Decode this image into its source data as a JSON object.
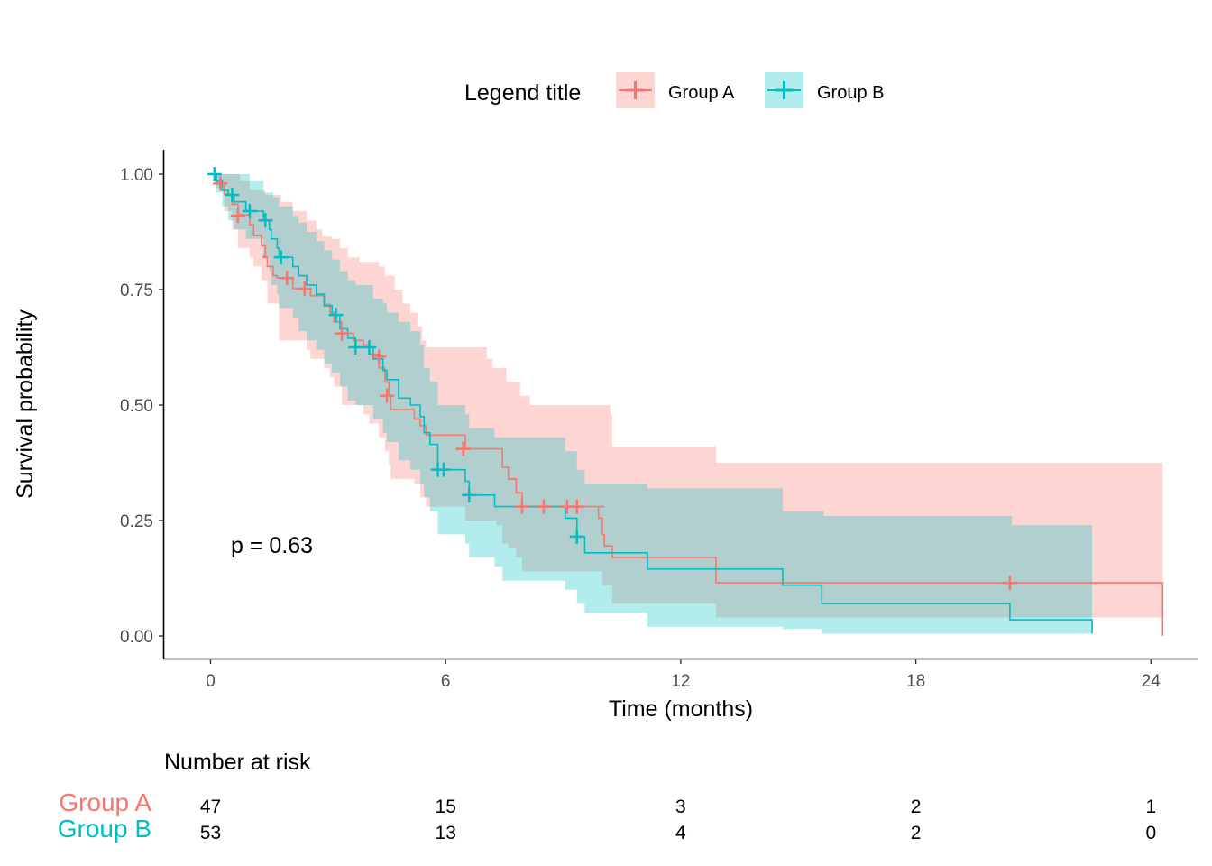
{
  "chart_data": {
    "type": "line",
    "subtype": "kaplan-meier survival curve with confidence bands and risk table",
    "xlabel": "Time (months)",
    "ylabel": "Survival probability",
    "xlim": [
      -1.1,
      25.3
    ],
    "ylim": [
      -0.05,
      1.05
    ],
    "x_ticks": [
      0,
      6,
      12,
      18,
      24
    ],
    "y_ticks": [
      0,
      0.25,
      0.5,
      0.75,
      1
    ],
    "y_tick_labels": [
      "0.00",
      "0.25",
      "0.50",
      "0.75",
      "1.00"
    ],
    "grid": false,
    "legend": {
      "title": "Legend title",
      "placement": "top"
    },
    "annotation": "p = 0.63",
    "series": [
      {
        "name": "Group A",
        "color": "#F8766D",
        "curve": [
          [
            0,
            1
          ],
          [
            0.15,
            0.98
          ],
          [
            0.35,
            0.957
          ],
          [
            0.55,
            0.935
          ],
          [
            0.7,
            0.912
          ],
          [
            1.0,
            0.89
          ],
          [
            1.1,
            0.867
          ],
          [
            1.3,
            0.845
          ],
          [
            1.4,
            0.822
          ],
          [
            1.35,
            0.82
          ],
          [
            1.45,
            0.8
          ],
          [
            1.6,
            0.78
          ],
          [
            1.7,
            0.775
          ],
          [
            2.0,
            0.775
          ],
          [
            2.1,
            0.752
          ],
          [
            2.3,
            0.752
          ],
          [
            2.45,
            0.752
          ],
          [
            2.55,
            0.737
          ],
          [
            2.9,
            0.718
          ],
          [
            3.05,
            0.7
          ],
          [
            3.15,
            0.68
          ],
          [
            3.35,
            0.655
          ],
          [
            3.65,
            0.64
          ],
          [
            3.9,
            0.63
          ],
          [
            4.05,
            0.61
          ],
          [
            4.3,
            0.58
          ],
          [
            4.45,
            0.55
          ],
          [
            4.55,
            0.52
          ],
          [
            4.6,
            0.49
          ],
          [
            5.2,
            0.47
          ],
          [
            5.35,
            0.455
          ],
          [
            5.5,
            0.435
          ],
          [
            6.4,
            0.435
          ],
          [
            6.5,
            0.405
          ],
          [
            7.3,
            0.405
          ],
          [
            7.45,
            0.365
          ],
          [
            7.6,
            0.34
          ],
          [
            7.8,
            0.31
          ],
          [
            7.95,
            0.28
          ],
          [
            10.05,
            0.28
          ],
          [
            9.9,
            0.255
          ],
          [
            10.0,
            0.22
          ],
          [
            10.05,
            0.195
          ],
          [
            10.25,
            0.17
          ],
          [
            12.85,
            0.17
          ],
          [
            12.9,
            0.115
          ],
          [
            24.25,
            0.115
          ],
          [
            24.3,
            0
          ]
        ],
        "band_upper": [
          [
            0,
            1
          ],
          [
            0.35,
            1
          ],
          [
            0.75,
            0.985
          ],
          [
            1.0,
            0.965
          ],
          [
            1.4,
            0.955
          ],
          [
            1.8,
            0.94
          ],
          [
            2.1,
            0.92
          ],
          [
            2.45,
            0.9
          ],
          [
            2.7,
            0.88
          ],
          [
            2.85,
            0.865
          ],
          [
            3.1,
            0.86
          ],
          [
            3.3,
            0.84
          ],
          [
            3.5,
            0.82
          ],
          [
            3.8,
            0.81
          ],
          [
            4.0,
            0.81
          ],
          [
            4.3,
            0.8
          ],
          [
            4.45,
            0.78
          ],
          [
            4.7,
            0.75
          ],
          [
            4.9,
            0.72
          ],
          [
            5.1,
            0.7
          ],
          [
            5.3,
            0.67
          ],
          [
            5.4,
            0.64
          ],
          [
            5.5,
            0.625
          ],
          [
            6.5,
            0.625
          ],
          [
            7.05,
            0.6
          ],
          [
            7.2,
            0.58
          ],
          [
            7.55,
            0.55
          ],
          [
            7.9,
            0.52
          ],
          [
            8.15,
            0.5
          ],
          [
            10.2,
            0.48
          ],
          [
            10.25,
            0.41
          ],
          [
            12.85,
            0.41
          ],
          [
            12.9,
            0.375
          ],
          [
            24.3,
            0.375
          ]
        ],
        "band_lower": [
          [
            0,
            1
          ],
          [
            0.15,
            0.97
          ],
          [
            0.35,
            0.92
          ],
          [
            0.55,
            0.88
          ],
          [
            0.7,
            0.84
          ],
          [
            1.0,
            0.82
          ],
          [
            1.1,
            0.8
          ],
          [
            1.3,
            0.77
          ],
          [
            1.45,
            0.72
          ],
          [
            1.6,
            0.72
          ],
          [
            1.75,
            0.64
          ],
          [
            2.1,
            0.64
          ],
          [
            2.3,
            0.64
          ],
          [
            2.45,
            0.62
          ],
          [
            2.55,
            0.6
          ],
          [
            2.9,
            0.58
          ],
          [
            3.05,
            0.56
          ],
          [
            3.15,
            0.54
          ],
          [
            3.35,
            0.5
          ],
          [
            3.65,
            0.5
          ],
          [
            3.9,
            0.48
          ],
          [
            4.05,
            0.46
          ],
          [
            4.3,
            0.43
          ],
          [
            4.45,
            0.4
          ],
          [
            4.55,
            0.37
          ],
          [
            4.6,
            0.34
          ],
          [
            5.2,
            0.33
          ],
          [
            5.35,
            0.3
          ],
          [
            5.5,
            0.28
          ],
          [
            6.4,
            0.28
          ],
          [
            6.5,
            0.25
          ],
          [
            7.3,
            0.24
          ],
          [
            7.45,
            0.2
          ],
          [
            7.6,
            0.19
          ],
          [
            7.8,
            0.17
          ],
          [
            7.95,
            0.14
          ],
          [
            9.9,
            0.14
          ],
          [
            10.0,
            0.11
          ],
          [
            10.25,
            0.07
          ],
          [
            12.85,
            0.07
          ],
          [
            12.9,
            0.04
          ],
          [
            24.3,
            0.04
          ]
        ],
        "censor": [
          [
            0.25,
            0.98
          ],
          [
            0.7,
            0.91
          ],
          [
            1.95,
            0.775
          ],
          [
            2.4,
            0.752
          ],
          [
            3.35,
            0.655
          ],
          [
            4.3,
            0.605
          ],
          [
            4.5,
            0.52
          ],
          [
            6.45,
            0.405
          ],
          [
            7.95,
            0.28
          ],
          [
            8.5,
            0.28
          ],
          [
            9.1,
            0.28
          ],
          [
            9.35,
            0.28
          ],
          [
            20.4,
            0.115
          ]
        ]
      },
      {
        "name": "Group B",
        "color": "#00BFC4",
        "curve": [
          [
            0,
            1
          ],
          [
            0.15,
            0.985
          ],
          [
            0.3,
            0.965
          ],
          [
            0.45,
            0.955
          ],
          [
            0.6,
            0.94
          ],
          [
            0.9,
            0.92
          ],
          [
            1.35,
            0.9
          ],
          [
            1.5,
            0.88
          ],
          [
            1.55,
            0.86
          ],
          [
            1.7,
            0.84
          ],
          [
            1.75,
            0.82
          ],
          [
            2.1,
            0.8
          ],
          [
            2.25,
            0.78
          ],
          [
            2.45,
            0.76
          ],
          [
            2.7,
            0.74
          ],
          [
            2.9,
            0.715
          ],
          [
            3.1,
            0.695
          ],
          [
            3.3,
            0.665
          ],
          [
            3.5,
            0.645
          ],
          [
            3.7,
            0.625
          ],
          [
            4.1,
            0.625
          ],
          [
            4.15,
            0.6
          ],
          [
            4.4,
            0.575
          ],
          [
            4.5,
            0.555
          ],
          [
            4.8,
            0.515
          ],
          [
            5.1,
            0.5
          ],
          [
            5.35,
            0.475
          ],
          [
            5.45,
            0.44
          ],
          [
            5.6,
            0.415
          ],
          [
            5.8,
            0.36
          ],
          [
            6.3,
            0.36
          ],
          [
            6.5,
            0.335
          ],
          [
            6.6,
            0.305
          ],
          [
            7.1,
            0.305
          ],
          [
            7.25,
            0.28
          ],
          [
            7.45,
            0.28
          ],
          [
            9.0,
            0.28
          ],
          [
            9.05,
            0.255
          ],
          [
            9.35,
            0.215
          ],
          [
            9.55,
            0.18
          ],
          [
            11.0,
            0.18
          ],
          [
            11.15,
            0.145
          ],
          [
            14.5,
            0.145
          ],
          [
            14.6,
            0.11
          ],
          [
            15.5,
            0.11
          ],
          [
            15.6,
            0.07
          ],
          [
            20.35,
            0.07
          ],
          [
            20.4,
            0.035
          ],
          [
            22.45,
            0.035
          ],
          [
            22.5,
            0.005
          ]
        ],
        "band_upper": [
          [
            0,
            1
          ],
          [
            0.9,
            1
          ],
          [
            1.0,
            0.985
          ],
          [
            1.35,
            0.96
          ],
          [
            1.6,
            0.95
          ],
          [
            1.75,
            0.93
          ],
          [
            2.1,
            0.91
          ],
          [
            2.25,
            0.895
          ],
          [
            2.45,
            0.875
          ],
          [
            2.7,
            0.855
          ],
          [
            2.9,
            0.835
          ],
          [
            3.1,
            0.815
          ],
          [
            3.3,
            0.79
          ],
          [
            3.5,
            0.77
          ],
          [
            3.7,
            0.76
          ],
          [
            4.1,
            0.76
          ],
          [
            4.15,
            0.73
          ],
          [
            4.4,
            0.72
          ],
          [
            4.5,
            0.7
          ],
          [
            4.8,
            0.68
          ],
          [
            5.1,
            0.66
          ],
          [
            5.35,
            0.63
          ],
          [
            5.45,
            0.58
          ],
          [
            5.6,
            0.55
          ],
          [
            5.8,
            0.5
          ],
          [
            6.5,
            0.48
          ],
          [
            6.6,
            0.45
          ],
          [
            7.1,
            0.45
          ],
          [
            7.25,
            0.43
          ],
          [
            9.0,
            0.43
          ],
          [
            9.05,
            0.4
          ],
          [
            9.35,
            0.36
          ],
          [
            9.55,
            0.33
          ],
          [
            11.15,
            0.32
          ],
          [
            14.5,
            0.32
          ],
          [
            14.6,
            0.27
          ],
          [
            15.6,
            0.27
          ],
          [
            15.65,
            0.26
          ],
          [
            20.4,
            0.26
          ],
          [
            20.45,
            0.24
          ],
          [
            22.45,
            0.24
          ],
          [
            22.5,
            0.24
          ]
        ],
        "band_lower": [
          [
            0,
            1
          ],
          [
            0.15,
            0.96
          ],
          [
            0.3,
            0.93
          ],
          [
            0.45,
            0.9
          ],
          [
            0.6,
            0.88
          ],
          [
            0.9,
            0.86
          ],
          [
            1.35,
            0.82
          ],
          [
            1.5,
            0.79
          ],
          [
            1.55,
            0.76
          ],
          [
            1.7,
            0.74
          ],
          [
            1.75,
            0.71
          ],
          [
            2.1,
            0.69
          ],
          [
            2.25,
            0.66
          ],
          [
            2.45,
            0.64
          ],
          [
            2.7,
            0.62
          ],
          [
            2.9,
            0.59
          ],
          [
            3.1,
            0.57
          ],
          [
            3.3,
            0.54
          ],
          [
            3.5,
            0.51
          ],
          [
            3.7,
            0.5
          ],
          [
            4.1,
            0.5
          ],
          [
            4.15,
            0.47
          ],
          [
            4.4,
            0.44
          ],
          [
            4.5,
            0.42
          ],
          [
            4.8,
            0.38
          ],
          [
            5.1,
            0.36
          ],
          [
            5.35,
            0.33
          ],
          [
            5.45,
            0.3
          ],
          [
            5.6,
            0.27
          ],
          [
            5.8,
            0.22
          ],
          [
            6.3,
            0.22
          ],
          [
            6.5,
            0.2
          ],
          [
            6.6,
            0.17
          ],
          [
            7.1,
            0.17
          ],
          [
            7.25,
            0.15
          ],
          [
            7.45,
            0.12
          ],
          [
            9.0,
            0.12
          ],
          [
            9.05,
            0.1
          ],
          [
            9.35,
            0.07
          ],
          [
            9.55,
            0.05
          ],
          [
            11.0,
            0.05
          ],
          [
            11.15,
            0.02
          ],
          [
            14.5,
            0.02
          ],
          [
            14.6,
            0.015
          ],
          [
            15.6,
            0.005
          ],
          [
            22.5,
            0.005
          ]
        ],
        "censor": [
          [
            0.1,
            1.0
          ],
          [
            0.55,
            0.955
          ],
          [
            1.0,
            0.92
          ],
          [
            1.4,
            0.9
          ],
          [
            1.8,
            0.82
          ],
          [
            3.2,
            0.695
          ],
          [
            3.7,
            0.625
          ],
          [
            4.05,
            0.625
          ],
          [
            5.8,
            0.36
          ],
          [
            5.95,
            0.36
          ],
          [
            6.6,
            0.305
          ],
          [
            9.35,
            0.215
          ]
        ]
      }
    ],
    "risk_table": {
      "title": "Number at risk",
      "times": [
        0,
        6,
        12,
        18,
        24
      ],
      "rows": [
        {
          "group": "Group A",
          "color": "#F8766D",
          "counts": [
            "47",
            "15",
            "3",
            "2",
            "1"
          ]
        },
        {
          "group": "Group B",
          "color": "#00BFC4",
          "counts": [
            "53",
            "13",
            "4",
            "2",
            "0"
          ]
        }
      ]
    }
  }
}
